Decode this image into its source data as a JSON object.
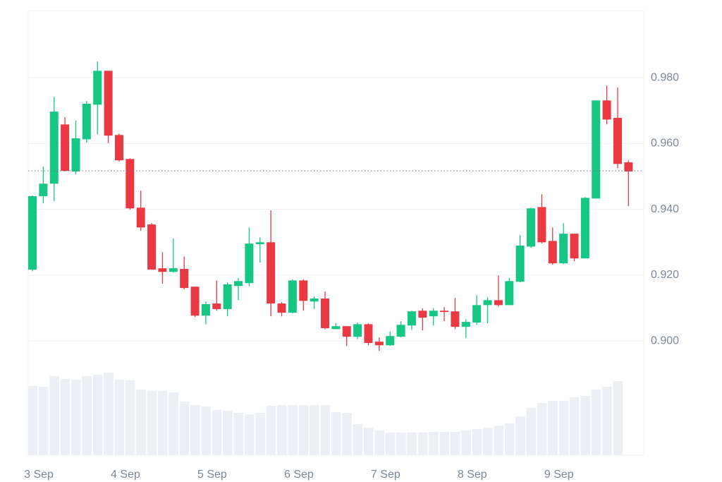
{
  "chart_data": {
    "type": "candlestick",
    "categories": [
      "3 Sep",
      null,
      null,
      null,
      null,
      null,
      null,
      null,
      "4 Sep",
      null,
      null,
      null,
      null,
      null,
      null,
      null,
      "5 Sep",
      null,
      null,
      null,
      null,
      null,
      null,
      null,
      "6 Sep",
      null,
      null,
      null,
      null,
      null,
      null,
      null,
      "7 Sep",
      null,
      null,
      null,
      null,
      null,
      null,
      null,
      "8 Sep",
      null,
      null,
      null,
      null,
      null,
      null,
      null,
      "9 Sep",
      null,
      null,
      null,
      null,
      null,
      null,
      null
    ],
    "open": [
      0.9217,
      0.944,
      0.9478,
      0.9658,
      0.9515,
      0.9613,
      0.9718,
      0.9821,
      0.9626,
      0.9553,
      0.9405,
      0.9354,
      0.9221,
      0.921,
      0.9219,
      0.9165,
      0.9077,
      0.9114,
      0.9097,
      0.9167,
      0.9176,
      0.9294,
      0.93,
      0.9114,
      0.9086,
      0.9184,
      0.912,
      0.9129,
      0.9036,
      0.9045,
      0.9013,
      0.9051,
      0.8998,
      0.8987,
      0.9013,
      0.9047,
      0.9092,
      0.9075,
      0.9092,
      0.909,
      0.9043,
      0.9056,
      0.9109,
      0.9124,
      0.9109,
      0.918,
      0.9287,
      0.9407,
      0.9304,
      0.9236,
      0.9326,
      0.9251,
      0.9433,
      0.9731,
      0.9678,
      0.9543
    ],
    "high": [
      0.9442,
      0.953,
      0.9742,
      0.968,
      0.967,
      0.9729,
      0.9849,
      0.9821,
      0.963,
      0.9555,
      0.9457,
      0.9358,
      0.927,
      0.9311,
      0.9257,
      0.9165,
      0.912,
      0.9184,
      0.9178,
      0.9191,
      0.9345,
      0.9315,
      0.9397,
      0.9118,
      0.9187,
      0.9187,
      0.9135,
      0.915,
      0.9054,
      0.9045,
      0.9056,
      0.9054,
      0.9011,
      0.9028,
      0.906,
      0.9092,
      0.9099,
      0.9099,
      0.9103,
      0.9131,
      0.9066,
      0.9139,
      0.9133,
      0.9199,
      0.9191,
      0.9322,
      0.9405,
      0.9446,
      0.9345,
      0.9358,
      0.9326,
      0.9437,
      0.9731,
      0.9776,
      0.977,
      0.9549
    ],
    "low": [
      0.9212,
      0.9418,
      0.9425,
      0.9515,
      0.9506,
      0.9603,
      0.9628,
      0.9601,
      0.9545,
      0.9399,
      0.9335,
      0.9217,
      0.9174,
      0.9208,
      0.9157,
      0.9073,
      0.9051,
      0.9092,
      0.9075,
      0.9124,
      0.9167,
      0.9238,
      0.9075,
      0.9075,
      0.9084,
      0.9092,
      0.9097,
      0.9036,
      0.9036,
      0.8985,
      0.9006,
      0.8987,
      0.897,
      0.8985,
      0.9011,
      0.9034,
      0.9032,
      0.9047,
      0.906,
      0.9036,
      0.9009,
      0.9049,
      0.9054,
      0.9105,
      0.9109,
      0.9178,
      0.9283,
      0.9296,
      0.9232,
      0.9234,
      0.9242,
      0.9251,
      0.9433,
      0.9658,
      0.9525,
      0.941
    ],
    "close": [
      0.944,
      0.9478,
      0.9697,
      0.9517,
      0.9616,
      0.9721,
      0.9821,
      0.9624,
      0.9549,
      0.9403,
      0.9345,
      0.9217,
      0.921,
      0.9221,
      0.9161,
      0.9077,
      0.9112,
      0.9097,
      0.9172,
      0.9182,
      0.9296,
      0.93,
      0.9114,
      0.9086,
      0.9184,
      0.9122,
      0.9129,
      0.9039,
      0.9045,
      0.9013,
      0.9051,
      0.8994,
      0.8987,
      0.9015,
      0.9049,
      0.909,
      0.9071,
      0.9092,
      0.9088,
      0.9043,
      0.9058,
      0.9109,
      0.9124,
      0.9109,
      0.9182,
      0.929,
      0.9403,
      0.93,
      0.9236,
      0.9326,
      0.9251,
      0.9435,
      0.9731,
      0.9673,
      0.9538,
      0.9515
    ],
    "volume": [
      98,
      97,
      112,
      108,
      107,
      112,
      114,
      117,
      107,
      106,
      93,
      91,
      91,
      89,
      76,
      71,
      69,
      64,
      63,
      60,
      58,
      60,
      70,
      71,
      71,
      71,
      71,
      71,
      61,
      60,
      44,
      39,
      35,
      32,
      32,
      32,
      32,
      33,
      33,
      33,
      35,
      37,
      39,
      42,
      45,
      55,
      67,
      74,
      77,
      77,
      82,
      84,
      93,
      97,
      105,
      null
    ],
    "current_price": 0.9517,
    "up_color": "#16c784",
    "down_color": "#ea3943",
    "volume_color": "#eceff3",
    "ylim": [
      0.8653,
      1.0004
    ],
    "yticks": [
      {
        "value": 0.98,
        "label": "0.980"
      },
      {
        "value": 0.96,
        "label": "0.960"
      },
      {
        "value": 0.94,
        "label": "0.940"
      },
      {
        "value": 0.92,
        "label": "0.920"
      },
      {
        "value": 0.9,
        "label": "0.900"
      }
    ],
    "grid": true
  }
}
